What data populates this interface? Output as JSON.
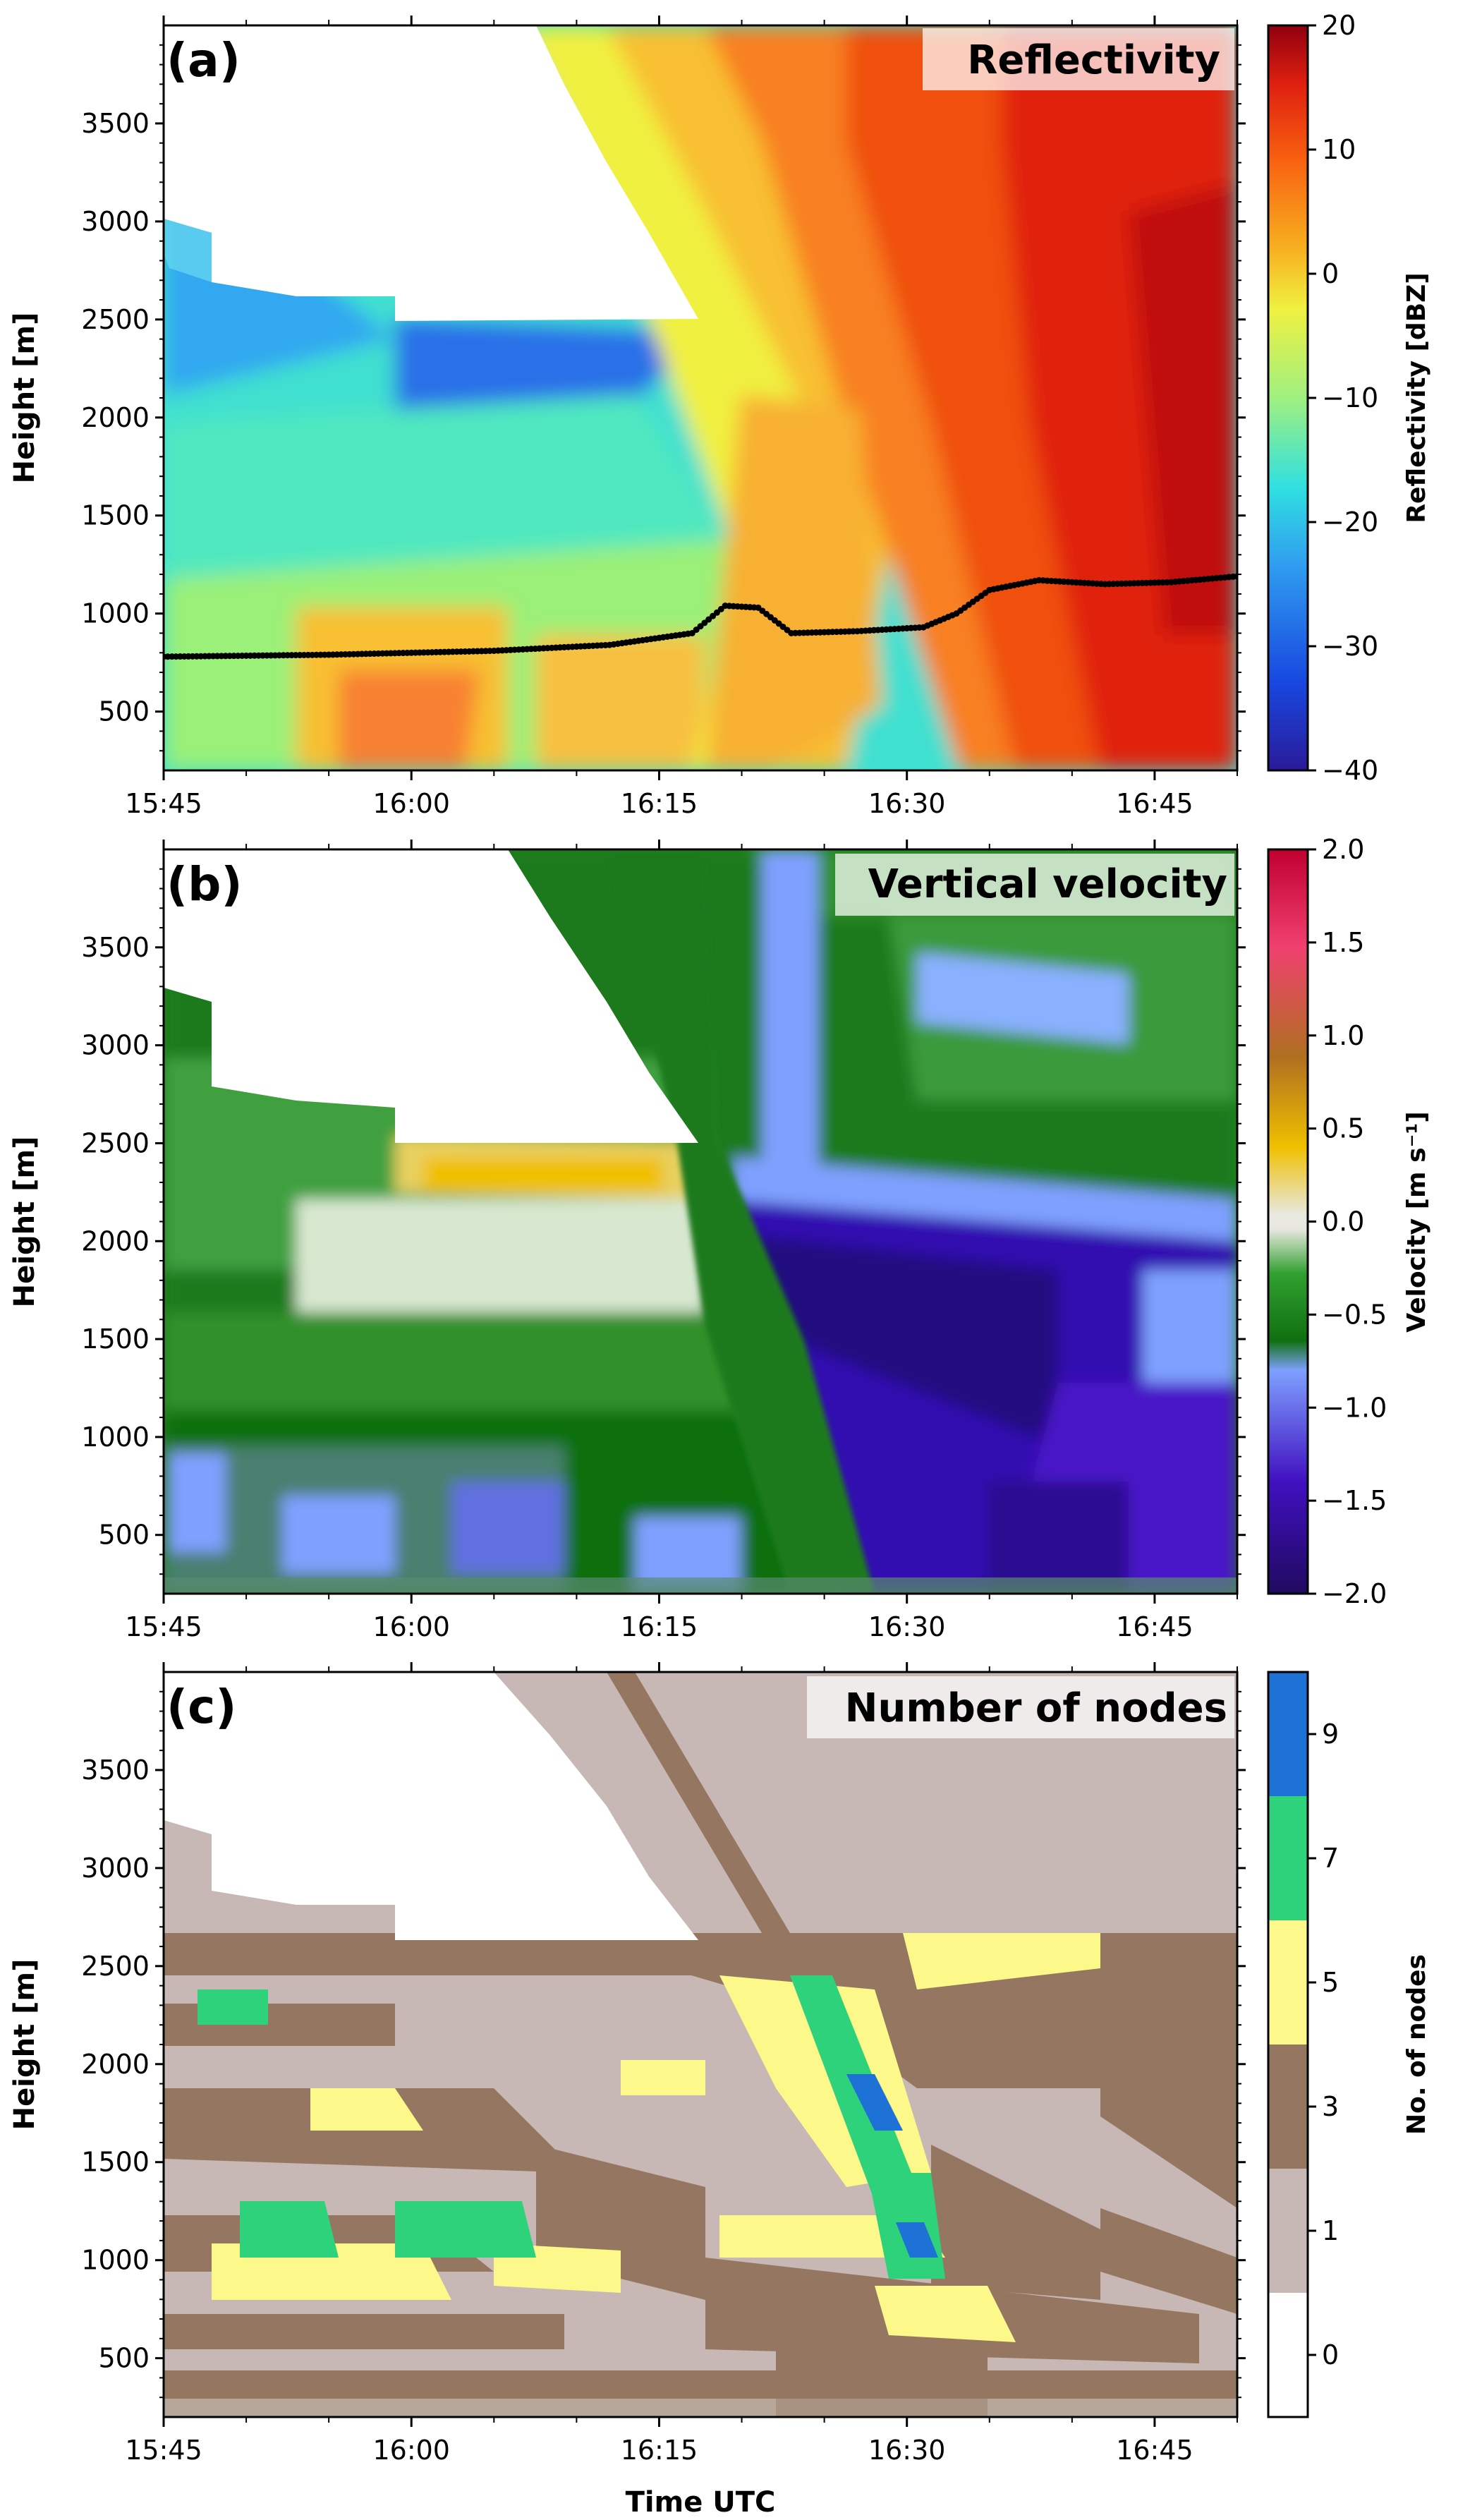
{
  "figure": {
    "xlabel": "Time UTC"
  },
  "chart_data": [
    {
      "type": "heatmap",
      "panel_label": "(a)",
      "title": "Reflectivity",
      "ylabel": "Height [m]",
      "x_tick_labels": [
        "15:45",
        "16:00",
        "16:15",
        "16:30",
        "16:45"
      ],
      "y_tick_labels": [
        "500",
        "1000",
        "1500",
        "2000",
        "2500",
        "3000",
        "3500"
      ],
      "xlim": [
        "15:45",
        "16:50"
      ],
      "ylim": [
        200,
        4000
      ],
      "colorbar": {
        "label": "Reflectivity [dBZ]",
        "range": [
          -40,
          20
        ],
        "ticks": [
          "20",
          "10",
          "0",
          "−10",
          "−20",
          "−30",
          "−40"
        ],
        "colors": [
          "#2a1a9a",
          "#1848e0",
          "#30a0f0",
          "#30e0e0",
          "#a0f080",
          "#f0f040",
          "#f8b020",
          "#f86010",
          "#e02010",
          "#900010"
        ]
      },
      "overlay_line": {
        "marker_color": "#000000",
        "x": [
          "15:45",
          "15:55",
          "16:05",
          "16:12",
          "16:17",
          "16:19",
          "16:21",
          "16:23",
          "16:27",
          "16:31",
          "16:33",
          "16:35",
          "16:38",
          "16:42",
          "16:46",
          "16:50"
        ],
        "y": [
          780,
          790,
          810,
          840,
          900,
          1040,
          1030,
          900,
          910,
          930,
          1000,
          1120,
          1170,
          1150,
          1160,
          1190
        ]
      }
    },
    {
      "type": "heatmap",
      "panel_label": "(b)",
      "title": "Vertical velocity",
      "ylabel": "Height [m]",
      "x_tick_labels": [
        "15:45",
        "16:00",
        "16:15",
        "16:30",
        "16:45"
      ],
      "y_tick_labels": [
        "500",
        "1000",
        "1500",
        "2000",
        "2500",
        "3000",
        "3500"
      ],
      "xlim": [
        "15:45",
        "16:50"
      ],
      "ylim": [
        200,
        4000
      ],
      "colorbar": {
        "label": "Velocity [m s⁻¹]",
        "range": [
          -2.0,
          2.0
        ],
        "ticks": [
          "2.0",
          "1.5",
          "1.0",
          "0.5",
          "0.0",
          "−0.5",
          "−1.0",
          "−1.5",
          "−2.0"
        ],
        "colors": [
          "#200a60",
          "#4010c0",
          "#7fa0ff",
          "#107010",
          "#30a030",
          "#e8e8e0",
          "#f0c000",
          "#b07020",
          "#f04070",
          "#c00030"
        ]
      }
    },
    {
      "type": "heatmap",
      "panel_label": "(c)",
      "title": "Number of nodes",
      "ylabel": "Height [m]",
      "x_tick_labels": [
        "15:45",
        "16:00",
        "16:15",
        "16:30",
        "16:45"
      ],
      "y_tick_labels": [
        "500",
        "1000",
        "1500",
        "2000",
        "2500",
        "3000",
        "3500"
      ],
      "xlim": [
        "15:45",
        "16:50"
      ],
      "ylim": [
        200,
        4000
      ],
      "colorbar": {
        "label": "No. of nodes",
        "ticks": [
          "9",
          "7",
          "5",
          "3",
          "1",
          "0"
        ],
        "levels": [
          {
            "label": "0",
            "color": "#ffffff"
          },
          {
            "label": "1",
            "color": "#c7b8b5"
          },
          {
            "label": "3",
            "color": "#957761"
          },
          {
            "label": "5",
            "color": "#fdf88a"
          },
          {
            "label": "7",
            "color": "#2ed27a"
          },
          {
            "label": "9",
            "color": "#1e72d6"
          }
        ]
      }
    }
  ]
}
